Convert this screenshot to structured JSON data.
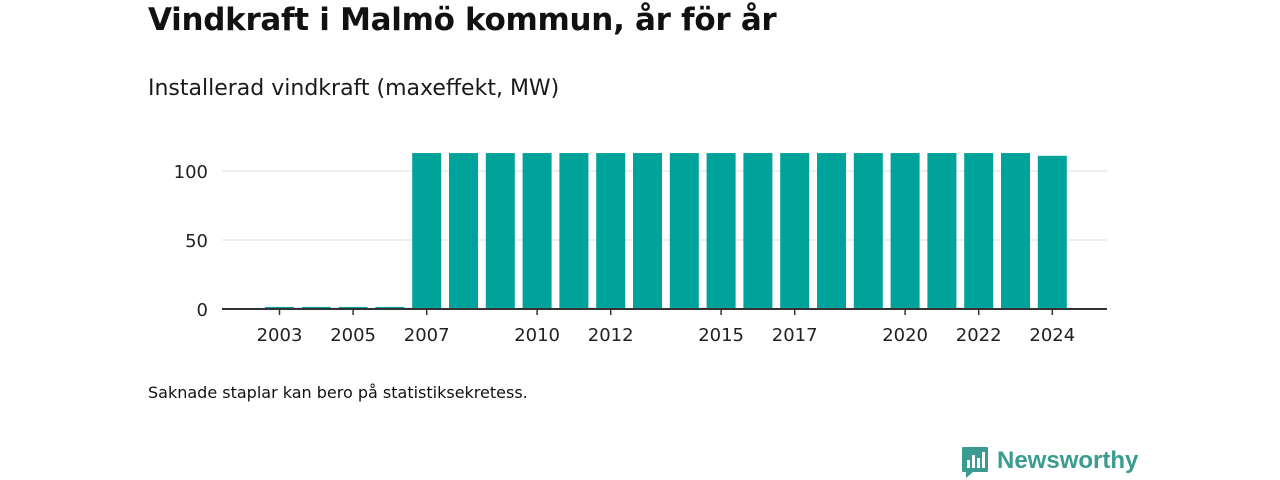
{
  "header": {
    "title": "Vindkraft i Malmö kommun, år för år",
    "subtitle": "Installerad vindkraft (maxeffekt, MW)"
  },
  "footnote": "Saknade staplar kan bero på statistiksekretess.",
  "brand": {
    "name": "Newsworthy",
    "icon": "bar-chart-speech-bubble-icon",
    "color": "#3a9c90"
  },
  "chart_data": {
    "type": "bar",
    "title": "Vindkraft i Malmö kommun, år för år",
    "subtitle": "Installerad vindkraft (maxeffekt, MW)",
    "xlabel": "",
    "ylabel": "",
    "categories": [
      "2002",
      "2003",
      "2004",
      "2005",
      "2006",
      "2007",
      "2008",
      "2009",
      "2010",
      "2011",
      "2012",
      "2013",
      "2014",
      "2015",
      "2016",
      "2017",
      "2018",
      "2019",
      "2020",
      "2021",
      "2022",
      "2023",
      "2024"
    ],
    "values": [
      null,
      1.5,
      1.5,
      1.5,
      1.5,
      113,
      113,
      113,
      113,
      113,
      113,
      113,
      113,
      113,
      113,
      113,
      113,
      113,
      113,
      113,
      113,
      113,
      111
    ],
    "xtick_labels": [
      "2003",
      "2005",
      "2007",
      "2010",
      "2012",
      "2015",
      "2017",
      "2020",
      "2022",
      "2024"
    ],
    "yticks": [
      0,
      50,
      100
    ],
    "ytick_labels": [
      "0",
      "50",
      "100"
    ],
    "ylim": [
      0,
      120
    ],
    "grid": true,
    "legend": "none",
    "bar_color": "#00a39a",
    "grid_color": "#dddddd",
    "axis_color": "#333333"
  }
}
